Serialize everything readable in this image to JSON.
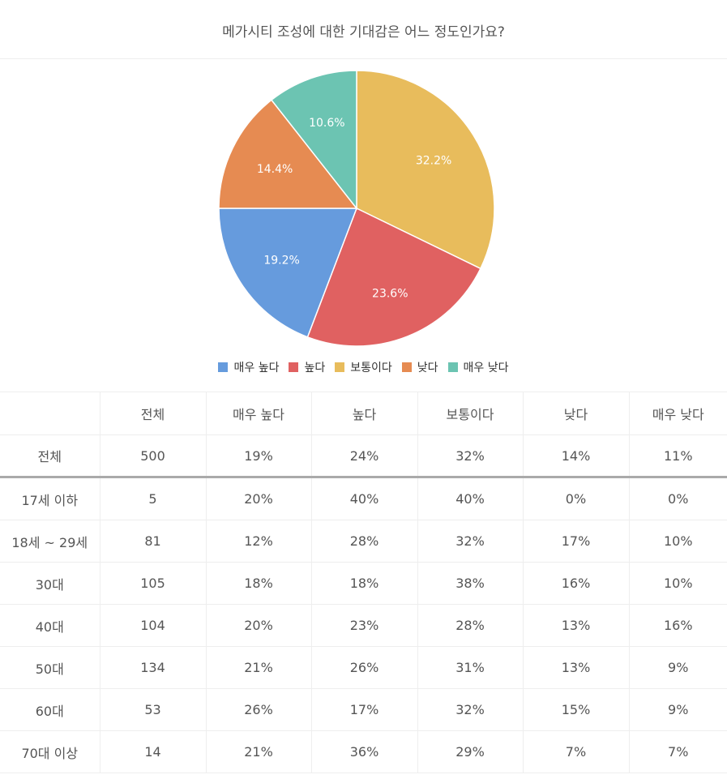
{
  "title": "메가시티 조성에 대한 기대감은 어느 정도인가요?",
  "chart_data": {
    "type": "pie",
    "slices": [
      {
        "label": "보통이다",
        "value": 32.2,
        "display": "32.2%",
        "color": "#e8bc5c"
      },
      {
        "label": "높다",
        "value": 23.6,
        "display": "23.6%",
        "color": "#e06161"
      },
      {
        "label": "매우 높다",
        "value": 19.2,
        "display": "19.2%",
        "color": "#669bdd"
      },
      {
        "label": "낮다",
        "value": 14.4,
        "display": "14.4%",
        "color": "#e68b52"
      },
      {
        "label": "매우 낮다",
        "value": 10.6,
        "display": "10.6%",
        "color": "#6cc4b2"
      }
    ],
    "legend": [
      {
        "label": "매우 높다",
        "color": "#669bdd"
      },
      {
        "label": "높다",
        "color": "#e06161"
      },
      {
        "label": "보통이다",
        "color": "#e8bc5c"
      },
      {
        "label": "낮다",
        "color": "#e68b52"
      },
      {
        "label": "매우 낮다",
        "color": "#6cc4b2"
      }
    ],
    "legend_position": "bottom"
  },
  "table": {
    "headers": [
      "",
      "전체",
      "매우 높다",
      "높다",
      "보통이다",
      "낮다",
      "매우 낮다"
    ],
    "rows": [
      [
        "전체",
        "500",
        "19%",
        "24%",
        "32%",
        "14%",
        "11%"
      ],
      [
        "17세 이하",
        "5",
        "20%",
        "40%",
        "40%",
        "0%",
        "0%"
      ],
      [
        "18세 ~ 29세",
        "81",
        "12%",
        "28%",
        "32%",
        "17%",
        "10%"
      ],
      [
        "30대",
        "105",
        "18%",
        "18%",
        "38%",
        "16%",
        "10%"
      ],
      [
        "40대",
        "104",
        "20%",
        "23%",
        "28%",
        "13%",
        "16%"
      ],
      [
        "50대",
        "134",
        "21%",
        "26%",
        "31%",
        "13%",
        "9%"
      ],
      [
        "60대",
        "53",
        "26%",
        "17%",
        "32%",
        "15%",
        "9%"
      ],
      [
        "70대 이상",
        "14",
        "21%",
        "36%",
        "29%",
        "7%",
        "7%"
      ]
    ]
  }
}
